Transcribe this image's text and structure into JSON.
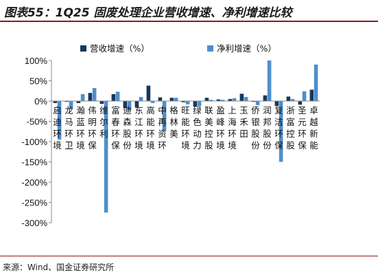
{
  "header": {
    "title": "图表55：1Q25 固废处理企业营收增速、净利增速比较"
  },
  "footer": {
    "source": "来源：Wind、国金证券研究所"
  },
  "chart_data": {
    "type": "bar",
    "title": "",
    "xlabel": "",
    "ylabel": "",
    "ylim": [
      -300,
      100
    ],
    "yticks": [
      100,
      50,
      0,
      -50,
      -100,
      -150,
      -200,
      -250,
      -300
    ],
    "ytick_labels": [
      "100%",
      "50%",
      "0%",
      "-50%",
      "-100%",
      "-150%",
      "-200%",
      "-250%",
      "-300%"
    ],
    "legend_position": "top",
    "grid": false,
    "categories": [
      "启迪环境",
      "龙马环卫",
      "瀚蓝环境",
      "伟明环保",
      "维尔利",
      "富春环保",
      "迪森股份",
      "东江环境",
      "高能环境",
      "中再资环",
      "格林美",
      "旺能环境",
      "绿色动力",
      "联美控股",
      "盈峰环境",
      "上海环境",
      "玉禾田",
      "侨银股份",
      "润邦股份",
      "复洁环保",
      "浙富控股",
      "圣元环保",
      "卓越新能"
    ],
    "series": [
      {
        "name": "营收增速（%）",
        "color": "#17375e",
        "values": [
          -5,
          -2,
          -5,
          20,
          -7,
          17,
          -18,
          -15,
          38,
          9,
          8,
          -3,
          -14,
          8,
          4,
          5,
          18,
          -2,
          14,
          -12,
          11,
          -9,
          28
        ]
      },
      {
        "name": "净利增速（%）",
        "color": "#4f8fcc",
        "values": [
          -95,
          -20,
          17,
          32,
          -275,
          23,
          -23,
          10,
          -5,
          -72,
          8,
          -8,
          -12,
          3,
          3,
          7,
          10,
          -10,
          100,
          -150,
          5,
          24,
          90
        ]
      }
    ]
  }
}
